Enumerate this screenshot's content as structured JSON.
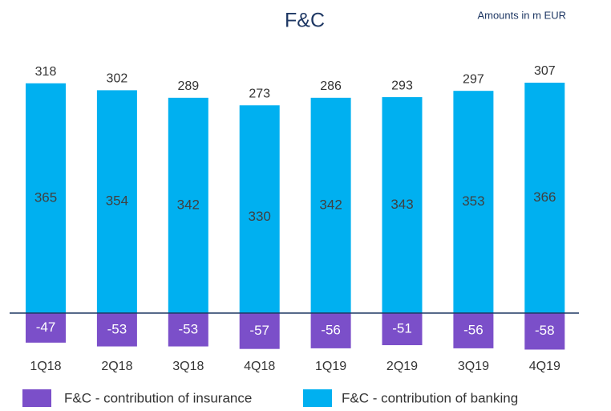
{
  "chart_data": {
    "type": "bar",
    "title": "F&C",
    "subtitle": "Amounts in m EUR",
    "categories": [
      "1Q18",
      "2Q18",
      "3Q18",
      "4Q18",
      "1Q19",
      "2Q19",
      "3Q19",
      "4Q19"
    ],
    "series": [
      {
        "name": "F&C - contribution of insurance",
        "color": "#7b4fc9",
        "values": [
          -47,
          -53,
          -53,
          -57,
          -56,
          -51,
          -56,
          -58
        ]
      },
      {
        "name": "F&C - contribution of banking",
        "color": "#00b0f0",
        "values": [
          365,
          354,
          342,
          330,
          342,
          343,
          353,
          366
        ]
      }
    ],
    "totals": [
      318,
      302,
      289,
      273,
      286,
      293,
      297,
      307
    ]
  }
}
